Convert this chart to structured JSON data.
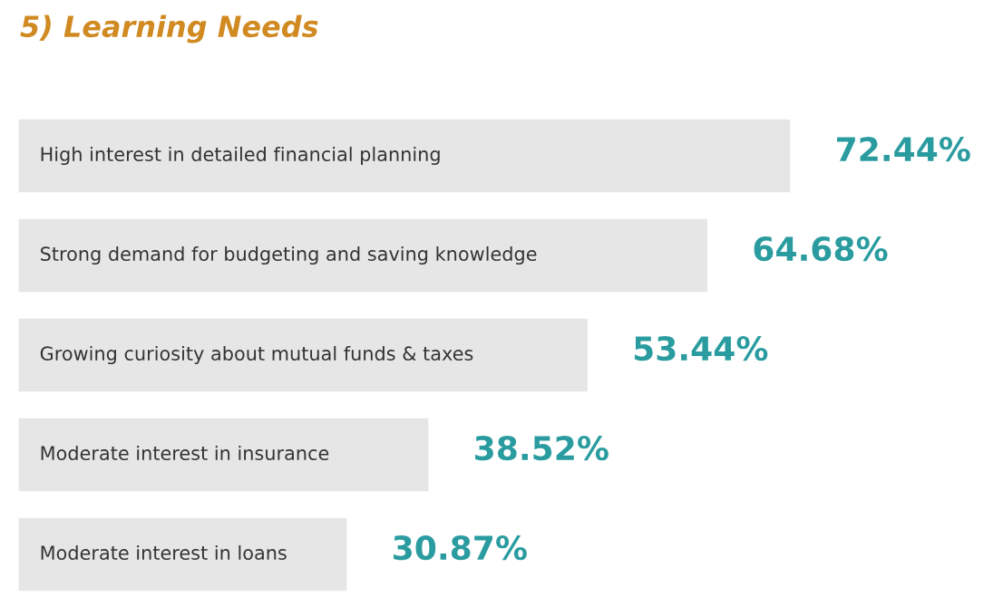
{
  "chart_data": {
    "type": "bar",
    "orientation": "horizontal",
    "title": "5) Learning Needs",
    "categories": [
      "High interest in detailed financial planning",
      "Strong demand for budgeting and saving knowledge",
      "Growing curiosity about mutual funds & taxes",
      "Moderate interest in insurance",
      "Moderate interest in loans"
    ],
    "values": [
      72.44,
      64.68,
      53.44,
      38.52,
      30.87
    ],
    "value_labels": [
      "72.44%",
      "64.68%",
      "53.44%",
      "38.52%",
      "30.87%"
    ],
    "color": "#e6e6e6",
    "tick_labels": false
  }
}
